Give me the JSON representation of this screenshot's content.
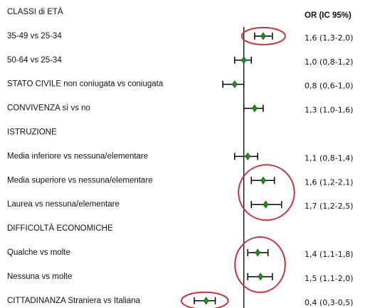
{
  "chart_data": {
    "type": "forest",
    "value_column_title": "OR (IC 95%)",
    "categories": [
      "CLASSI di ETÀ",
      "35-49 vs 25-34",
      "50-64 vs 25-34",
      "STATO CIVILE non coniugata vs coniugata",
      "CONVIVENZA sì vs no",
      "ISTRUZIONE",
      "Media inferiore vs nessuna/elementare",
      "Media superiore vs nessuna/elementare",
      "Laurea vs nessuna/elementare",
      "DIFFICOLTÀ ECONOMICHE",
      "Qualche vs molte",
      "Nessuna vs molte",
      "CITTADINANZA Straniera vs Italiana"
    ],
    "values": [
      null,
      1.6,
      1.0,
      0.8,
      1.3,
      null,
      1.1,
      1.6,
      1.7,
      null,
      1.4,
      1.5,
      0.4
    ],
    "ci_low": [
      null,
      1.3,
      0.8,
      0.6,
      1.0,
      null,
      0.8,
      1.2,
      1.2,
      null,
      1.1,
      1.1,
      0.3
    ],
    "ci_high": [
      null,
      2.0,
      1.2,
      1.0,
      1.6,
      null,
      1.4,
      2.1,
      2.5,
      null,
      1.8,
      2.0,
      0.5
    ],
    "value_labels": [
      null,
      "1,6 (1,3-2,0)",
      "1,0 (0,8-1,2)",
      "0,8 (0,6-1,0)",
      "1,3 (1,0-1,6)",
      null,
      "1,1 (0,8-1,4)",
      "1,6 (1,2-2,1)",
      "1,7 (1,2-2,5)",
      null,
      "1,4 (1,1-1,8)",
      "1,5 (1,1-2,0)",
      "0,4 (0,3-0,5)"
    ],
    "xlim": [
      0.3,
      2.6
    ],
    "log_x": true,
    "reference_line": 1,
    "color": "#1f8f1f",
    "highlight_color": "#c8323c",
    "highlight_groups": [
      [
        1,
        1
      ],
      [
        7,
        8
      ],
      [
        10,
        11
      ],
      [
        12,
        12
      ]
    ]
  }
}
